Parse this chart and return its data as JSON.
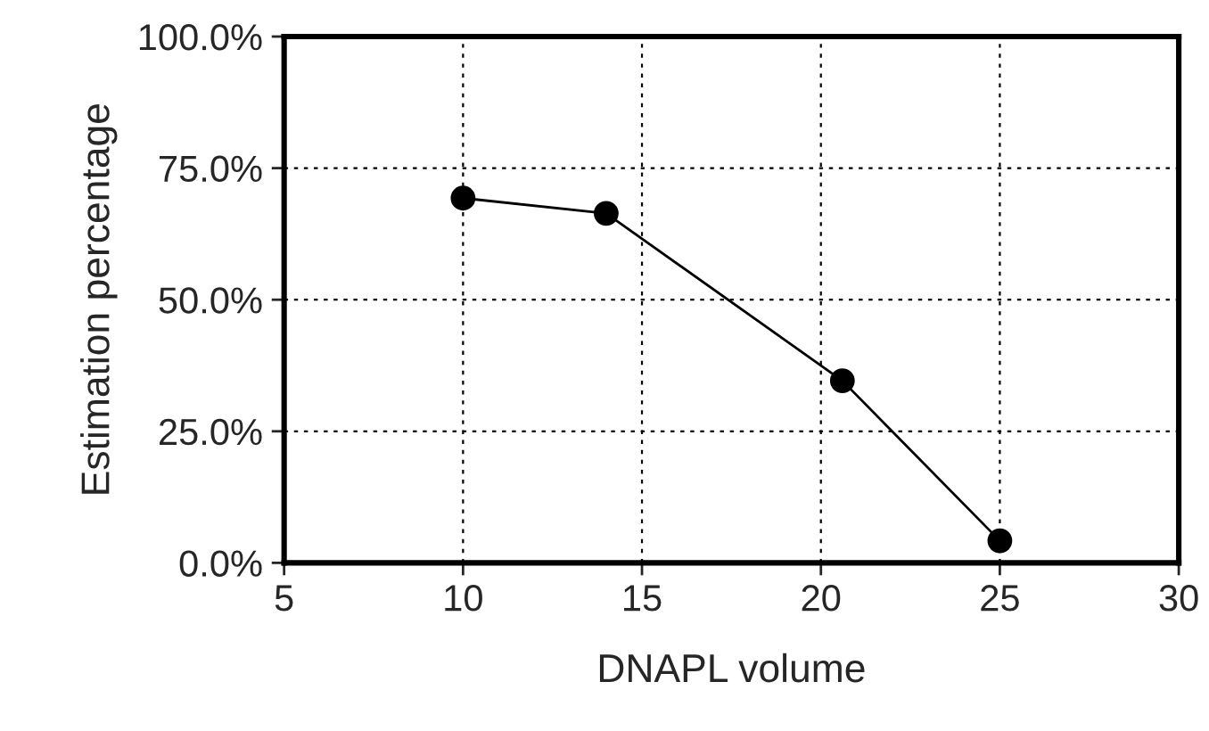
{
  "chart_data": {
    "type": "line",
    "xlabel": "DNAPL volume",
    "ylabel": "Estimation percentage",
    "x": [
      10,
      14,
      20.6,
      25
    ],
    "series": [
      {
        "color": "#000000",
        "values": [
          69.3,
          66.4,
          34.6,
          4.2
        ]
      }
    ],
    "xlim": [
      5,
      30
    ],
    "xticks": [
      5,
      10,
      15,
      20,
      25,
      30
    ],
    "ylim": [
      0,
      100
    ],
    "yticks": [
      {
        "value": 0,
        "label": "0.0%"
      },
      {
        "value": 25,
        "label": "25.0%"
      },
      {
        "value": 50,
        "label": "50.0%"
      },
      {
        "value": 75,
        "label": "75.0%"
      },
      {
        "value": 100,
        "label": "100.0%"
      }
    ],
    "grid": true,
    "marker": "circle",
    "line_style": "solid"
  }
}
